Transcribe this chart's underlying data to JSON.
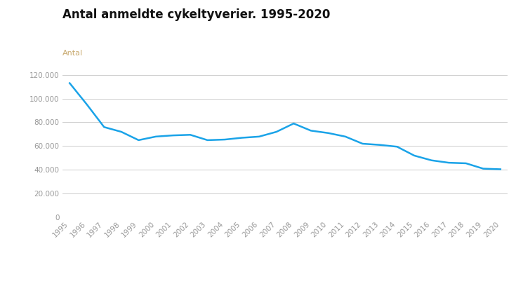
{
  "title": "Antal anmeldte cykeltyverier. 1995-2020",
  "ylabel": "Antal",
  "years": [
    1995,
    1996,
    1997,
    1998,
    1999,
    2000,
    2001,
    2002,
    2003,
    2004,
    2005,
    2006,
    2007,
    2008,
    2009,
    2010,
    2011,
    2012,
    2013,
    2014,
    2015,
    2016,
    2017,
    2018,
    2019,
    2020
  ],
  "values": [
    113000,
    95000,
    76000,
    72000,
    65000,
    68000,
    69000,
    69500,
    65000,
    65500,
    67000,
    68000,
    72000,
    79000,
    73000,
    71000,
    68000,
    62000,
    61000,
    59500,
    52000,
    48000,
    46000,
    45500,
    41000,
    40500
  ],
  "line_color": "#1aa3e8",
  "line_width": 1.8,
  "grid_color": "#cccccc",
  "background_color": "#ffffff",
  "title_fontsize": 12,
  "ylabel_fontsize": 8,
  "ylabel_color": "#c8a96e",
  "tick_fontsize": 7.5,
  "tick_color": "#999999",
  "ylim": [
    0,
    130000
  ],
  "yticks": [
    0,
    20000,
    40000,
    60000,
    80000,
    100000,
    120000
  ]
}
